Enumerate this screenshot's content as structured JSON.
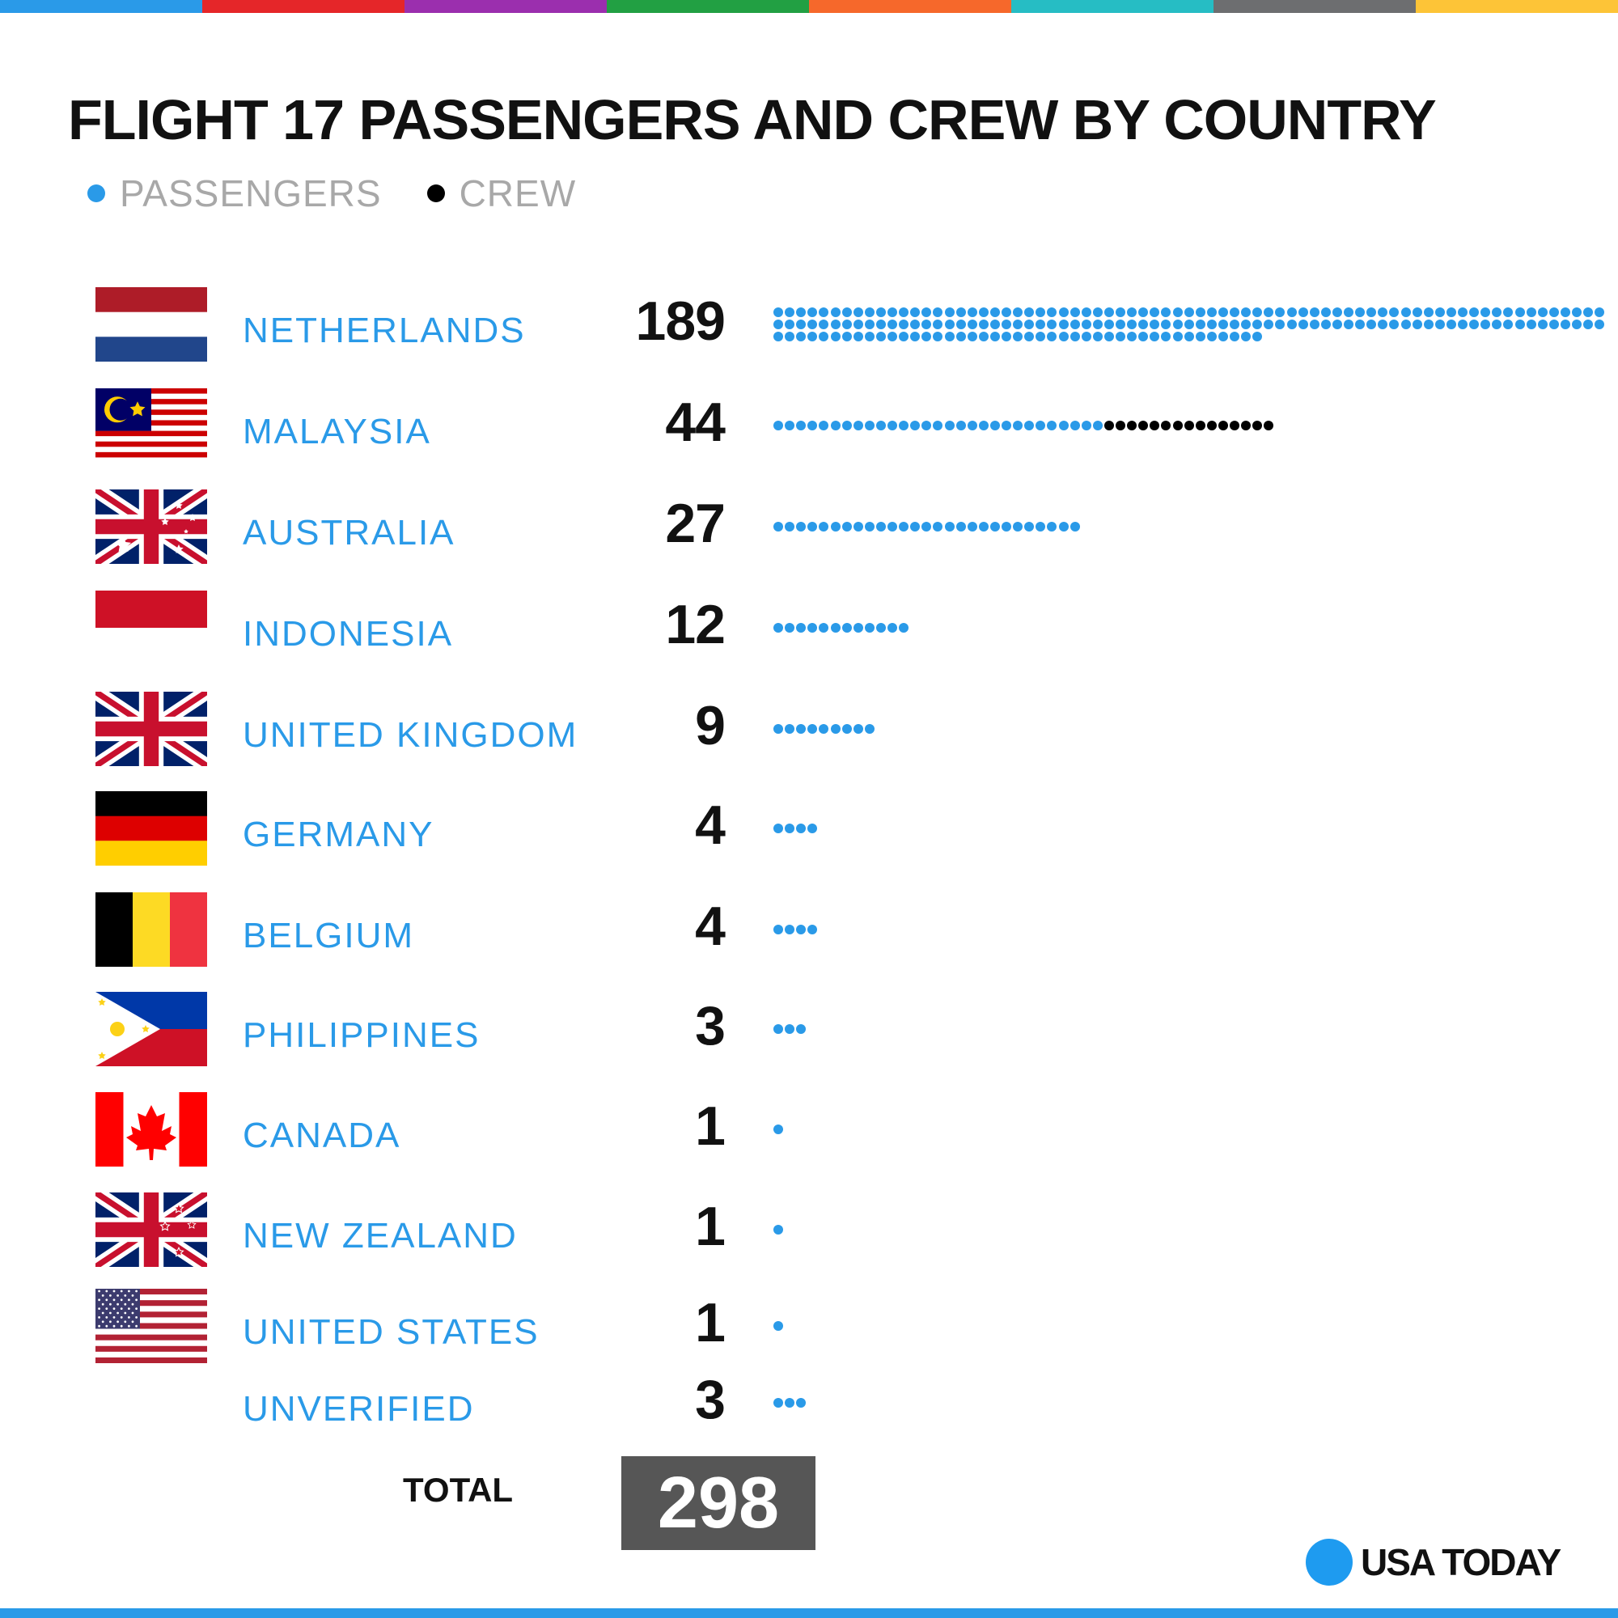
{
  "top_bar_colors": [
    "#2a9ae8",
    "#e52629",
    "#9b2fae",
    "#22a043",
    "#f6682b",
    "#26bdc4",
    "#6d6e70",
    "#fdc437"
  ],
  "bottom_bar_color": "#2a9ae8",
  "chart_data": {
    "type": "bar",
    "title": "FLIGHT 17 PASSENGERS AND CREW BY COUNTRY",
    "legend": {
      "placement": "top-left",
      "passengers_label": "PASSENGERS",
      "crew_label": "CREW"
    },
    "colors": {
      "passengers": "#2a9ae8",
      "crew": "#000000"
    },
    "categories": [
      "NETHERLANDS",
      "MALAYSIA",
      "AUSTRALIA",
      "INDONESIA",
      "UNITED KINGDOM",
      "GERMANY",
      "BELGIUM",
      "PHILIPPINES",
      "CANADA",
      "NEW ZEALAND",
      "UNITED STATES",
      "UNVERIFIED"
    ],
    "flags": [
      "netherlands-flag-icon",
      "malaysia-flag-icon",
      "australia-flag-icon",
      "indonesia-flag-icon",
      "united-kingdom-flag-icon",
      "germany-flag-icon",
      "belgium-flag-icon",
      "philippines-flag-icon",
      "canada-flag-icon",
      "new-zealand-flag-icon",
      "united-states-flag-icon",
      ""
    ],
    "totals": [
      189,
      44,
      27,
      12,
      9,
      4,
      4,
      3,
      1,
      1,
      1,
      3
    ],
    "passengers": [
      189,
      29,
      27,
      12,
      9,
      4,
      4,
      3,
      1,
      1,
      1,
      3
    ],
    "crew": [
      0,
      15,
      0,
      0,
      0,
      0,
      0,
      0,
      0,
      0,
      0,
      0
    ],
    "total_label": "TOTAL",
    "total_value": 298,
    "grid": false
  },
  "branding": {
    "name": "USA TODAY"
  }
}
